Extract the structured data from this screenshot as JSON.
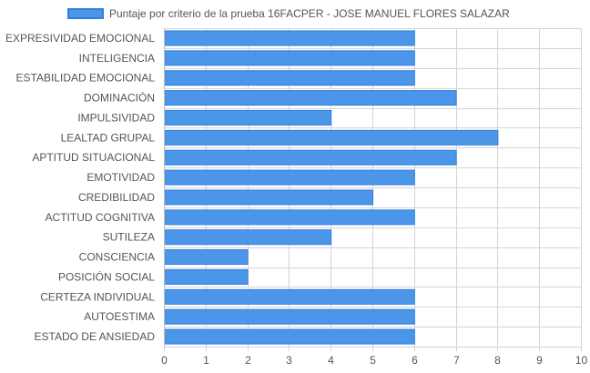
{
  "colors": {
    "bar_fill": "#4c96e9",
    "bar_border": "#2f7fe0",
    "grid": "#d4d4d4",
    "text": "#555555"
  },
  "chart_data": {
    "type": "bar",
    "orientation": "horizontal",
    "title": "",
    "xlabel": "",
    "ylabel": "",
    "legend": {
      "position": "top-left",
      "entries": [
        "Puntaje por criterio de la prueba 16FACPER - JOSE MANUEL FLORES SALAZAR"
      ]
    },
    "categories": [
      "EXPRESIVIDAD EMOCIONAL",
      "INTELIGENCIA",
      "ESTABILIDAD EMOCIONAL",
      "DOMINACIÓN",
      "IMPULSIVIDAD",
      "LEALTAD GRUPAL",
      "APTITUD SITUACIONAL",
      "EMOTIVIDAD",
      "CREDIBILIDAD",
      "ACTITUD COGNITIVA",
      "SUTILEZA",
      "CONSCIENCIA",
      "POSICIÓN SOCIAL",
      "CERTEZA INDIVIDUAL",
      "AUTOESTIMA",
      "ESTADO DE ANSIEDAD"
    ],
    "series": [
      {
        "name": "Puntaje por criterio de la prueba 16FACPER - JOSE MANUEL FLORES SALAZAR",
        "values": [
          6,
          6,
          6,
          7,
          4,
          8,
          7,
          6,
          5,
          6,
          4,
          2,
          2,
          6,
          6,
          6
        ]
      }
    ],
    "xlim": [
      0,
      10
    ],
    "xticks": [
      "0",
      "1",
      "2",
      "3",
      "4",
      "5",
      "6",
      "7",
      "8",
      "9",
      "10"
    ],
    "grid": true
  }
}
